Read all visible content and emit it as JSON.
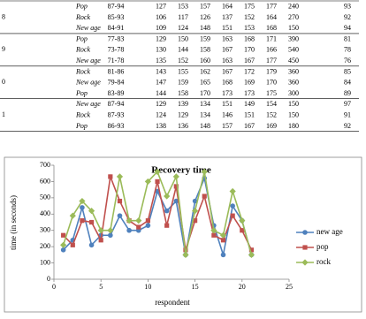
{
  "table": {
    "groups": [
      {
        "label": "8",
        "rows": [
          [
            "Pop",
            "87-94",
            127,
            153,
            157,
            164,
            175,
            177,
            240,
            93
          ],
          [
            "Rock",
            "85-93",
            106,
            117,
            126,
            137,
            152,
            164,
            270,
            92
          ],
          [
            "New age",
            "84-91",
            109,
            124,
            148,
            151,
            153,
            168,
            150,
            94
          ]
        ]
      },
      {
        "label": "9",
        "rows": [
          [
            "Pop",
            "77-83",
            129,
            150,
            159,
            163,
            168,
            171,
            390,
            81
          ],
          [
            "Rock",
            "73-78",
            130,
            144,
            158,
            167,
            170,
            166,
            540,
            78
          ],
          [
            "New age",
            "71-78",
            135,
            152,
            160,
            163,
            167,
            177,
            450,
            76
          ]
        ]
      },
      {
        "label": "0",
        "rows": [
          [
            "Rock",
            "81-86",
            143,
            155,
            162,
            167,
            172,
            179,
            360,
            85
          ],
          [
            "New age",
            "79-84",
            147,
            159,
            165,
            168,
            169,
            170,
            360,
            84
          ],
          [
            "Pop",
            "83-89",
            144,
            158,
            170,
            173,
            173,
            175,
            300,
            89
          ]
        ]
      },
      {
        "label": "1",
        "rows": [
          [
            "New age",
            "87-94",
            129,
            139,
            134,
            151,
            149,
            154,
            150,
            97
          ],
          [
            "Rock",
            "87-93",
            124,
            129,
            134,
            146,
            151,
            152,
            150,
            91
          ],
          [
            "Pop",
            "86-93",
            138,
            136,
            148,
            157,
            167,
            169,
            180,
            92
          ]
        ]
      }
    ]
  },
  "chart_data": {
    "type": "line",
    "title": "Recovery time",
    "x_label": "respondent",
    "y_label": "time (in seconds)",
    "x": [
      1,
      2,
      3,
      4,
      5,
      6,
      7,
      8,
      9,
      10,
      11,
      12,
      13,
      14,
      15,
      16,
      17,
      18,
      19,
      20,
      21
    ],
    "series": [
      {
        "name": "new age",
        "color": "#4f81bd",
        "marker": "circle",
        "values": [
          180,
          240,
          440,
          210,
          270,
          270,
          390,
          300,
          300,
          330,
          540,
          420,
          480,
          150,
          480,
          620,
          330,
          150,
          450,
          360,
          150
        ]
      },
      {
        "name": "pop",
        "color": "#c0504d",
        "marker": "square",
        "values": [
          270,
          210,
          360,
          350,
          240,
          630,
          480,
          360,
          320,
          360,
          600,
          330,
          570,
          180,
          360,
          510,
          270,
          240,
          390,
          300,
          180
        ]
      },
      {
        "name": "rock",
        "color": "#9bbb59",
        "marker": "diamond",
        "values": [
          210,
          390,
          480,
          420,
          300,
          300,
          630,
          360,
          360,
          600,
          660,
          510,
          630,
          150,
          420,
          660,
          300,
          270,
          540,
          360,
          150
        ]
      }
    ],
    "xlim": [
      0,
      25
    ],
    "xticks": [
      0,
      5,
      10,
      15,
      20,
      25
    ],
    "ylim": [
      0,
      700
    ],
    "yticks": [
      0,
      100,
      200,
      300,
      400,
      500,
      600,
      700
    ],
    "grid": false,
    "legend": "right"
  }
}
